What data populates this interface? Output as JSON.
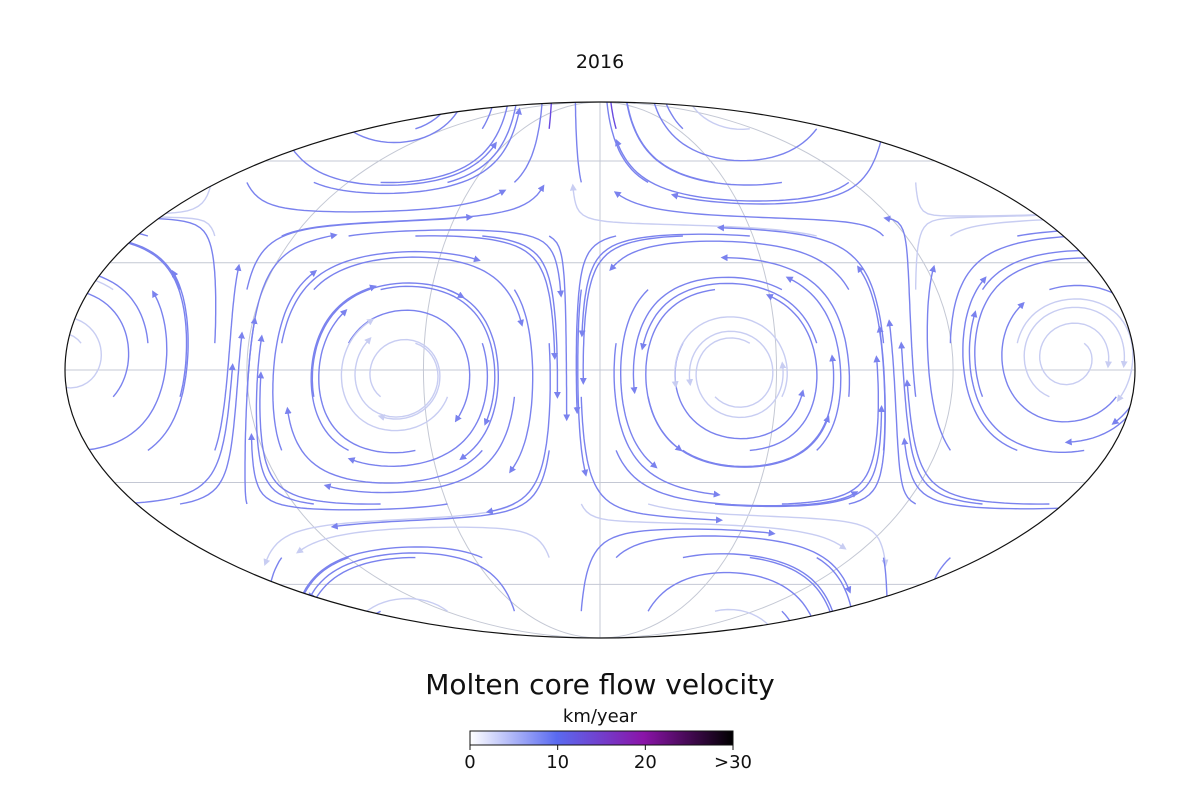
{
  "title": "2016",
  "colorbar": {
    "title": "Molten core flow velocity",
    "unit": "km/year",
    "range": [
      0,
      30
    ],
    "ticks": [
      0,
      10,
      20,
      {
        "value": 30,
        "label": ">30"
      }
    ]
  }
}
